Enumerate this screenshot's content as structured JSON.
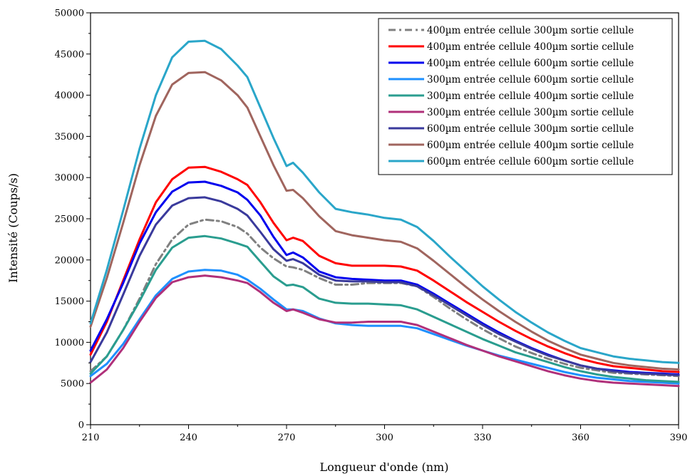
{
  "chart_data": {
    "type": "line",
    "xlabel": "Longueur d'onde (nm)",
    "ylabel": "Intensité (Coups/s)",
    "xlim": [
      210,
      390
    ],
    "ylim": [
      0,
      50000
    ],
    "x_ticks": [
      210,
      240,
      270,
      300,
      330,
      360,
      390
    ],
    "x_tick_labels": [
      "210",
      "240",
      "270",
      "300",
      "330",
      "360",
      "390"
    ],
    "y_ticks": [
      0,
      5000,
      10000,
      15000,
      20000,
      25000,
      30000,
      35000,
      40000,
      45000,
      50000
    ],
    "y_tick_labels": [
      "0",
      "5000",
      "10000",
      "15000",
      "20000",
      "25000",
      "30000",
      "35000",
      "40000",
      "45000",
      "50000"
    ],
    "grid": false,
    "legend_position": "top-right",
    "x": [
      210,
      215,
      220,
      225,
      230,
      235,
      240,
      245,
      250,
      255,
      258,
      262,
      266,
      270,
      272,
      275,
      280,
      285,
      290,
      295,
      300,
      305,
      310,
      315,
      320,
      325,
      330,
      335,
      340,
      345,
      350,
      355,
      360,
      365,
      370,
      375,
      380,
      385,
      390
    ],
    "series": [
      {
        "name": "400µm entrée cellule 300µm sortie cellule",
        "color": "#808080",
        "dash": "dashdot",
        "values": [
          6500,
          8300,
          11500,
          15300,
          19500,
          22500,
          24300,
          24900,
          24700,
          24000,
          23200,
          21500,
          20200,
          19200,
          19100,
          18800,
          17800,
          17000,
          17000,
          17200,
          17200,
          17200,
          16800,
          15500,
          14100,
          12800,
          11600,
          10500,
          9500,
          8700,
          8000,
          7400,
          6900,
          6600,
          6300,
          6200,
          6100,
          6000,
          5900
        ]
      },
      {
        "name": "400µm entrée cellule 400µm sortie cellule",
        "color": "#ff0000",
        "dash": "solid",
        "values": [
          8500,
          12500,
          17500,
          22500,
          27000,
          29800,
          31200,
          31300,
          30700,
          29800,
          29100,
          27000,
          24500,
          22400,
          22700,
          22300,
          20500,
          19600,
          19300,
          19300,
          19300,
          19200,
          18700,
          17500,
          16200,
          14900,
          13700,
          12500,
          11400,
          10400,
          9500,
          8700,
          8000,
          7500,
          7100,
          6900,
          6700,
          6500,
          6400
        ]
      },
      {
        "name": "400µm entrée cellule 600µm sortie cellule",
        "color": "#0000ee",
        "dash": "solid",
        "values": [
          9000,
          12800,
          17200,
          22000,
          25800,
          28300,
          29400,
          29500,
          29000,
          28200,
          27300,
          25400,
          22800,
          20600,
          20900,
          20300,
          18600,
          17900,
          17700,
          17600,
          17500,
          17500,
          17000,
          15900,
          14700,
          13500,
          12300,
          11200,
          10200,
          9300,
          8500,
          7800,
          7200,
          6800,
          6600,
          6400,
          6300,
          6200,
          6100
        ]
      },
      {
        "name": "300µm entrée cellule 600µm sortie cellule",
        "color": "#1e90ff",
        "dash": "solid",
        "values": [
          5900,
          7400,
          9800,
          12800,
          15700,
          17700,
          18600,
          18800,
          18700,
          18200,
          17600,
          16500,
          15200,
          14000,
          14000,
          13800,
          12900,
          12300,
          12100,
          12000,
          12000,
          12000,
          11700,
          11000,
          10300,
          9600,
          9000,
          8400,
          7900,
          7400,
          6900,
          6400,
          6000,
          5700,
          5500,
          5300,
          5200,
          5100,
          5000
        ]
      },
      {
        "name": "300µm entrée cellule 400µm sortie cellule",
        "color": "#2a9d8f",
        "dash": "solid",
        "values": [
          6200,
          8300,
          11500,
          15000,
          18800,
          21500,
          22700,
          22900,
          22600,
          22000,
          21600,
          19800,
          18000,
          16900,
          17000,
          16700,
          15300,
          14800,
          14700,
          14700,
          14600,
          14500,
          14000,
          13100,
          12200,
          11300,
          10400,
          9600,
          8800,
          8200,
          7600,
          7000,
          6500,
          6100,
          5800,
          5600,
          5400,
          5300,
          5200
        ]
      },
      {
        "name": "300µm entrée cellule 300µm sortie cellule",
        "color": "#b0307a",
        "dash": "solid",
        "values": [
          5100,
          6700,
          9300,
          12500,
          15400,
          17300,
          17900,
          18100,
          17900,
          17500,
          17200,
          16100,
          14800,
          13800,
          14000,
          13600,
          12800,
          12400,
          12400,
          12500,
          12500,
          12500,
          12100,
          11300,
          10500,
          9700,
          9000,
          8300,
          7700,
          7100,
          6500,
          6000,
          5600,
          5300,
          5100,
          5000,
          4900,
          4800,
          4700
        ]
      },
      {
        "name": "600µm entrée cellule 300µm sortie cellule",
        "color": "#3a3a9c",
        "dash": "solid",
        "values": [
          7600,
          11200,
          15800,
          20500,
          24300,
          26600,
          27500,
          27600,
          27100,
          26200,
          25400,
          23400,
          21300,
          19900,
          20100,
          19600,
          18200,
          17500,
          17400,
          17400,
          17300,
          17300,
          16800,
          15700,
          14500,
          13300,
          12100,
          11000,
          10100,
          9200,
          8400,
          7800,
          7200,
          6800,
          6500,
          6300,
          6200,
          6100,
          6000
        ]
      },
      {
        "name": "600µm entrée cellule 400µm sortie cellule",
        "color": "#a0655e",
        "dash": "solid",
        "values": [
          11900,
          17800,
          24500,
          31500,
          37500,
          41300,
          42700,
          42800,
          41800,
          40000,
          38500,
          35000,
          31500,
          28400,
          28500,
          27500,
          25300,
          23500,
          23000,
          22700,
          22400,
          22200,
          21400,
          19900,
          18300,
          16700,
          15200,
          13800,
          12500,
          11300,
          10200,
          9300,
          8500,
          8000,
          7500,
          7200,
          7000,
          6800,
          6700
        ]
      },
      {
        "name": "600µm entrée cellule 600µm sortie cellule",
        "color": "#2aa6c9",
        "dash": "solid",
        "values": [
          12300,
          18800,
          26000,
          33500,
          40000,
          44600,
          46500,
          46600,
          45600,
          43600,
          42200,
          38500,
          34800,
          31400,
          31800,
          30600,
          28200,
          26200,
          25800,
          25500,
          25100,
          24900,
          24000,
          22300,
          20400,
          18600,
          16800,
          15200,
          13700,
          12400,
          11200,
          10200,
          9300,
          8800,
          8300,
          8000,
          7800,
          7600,
          7500
        ]
      }
    ]
  }
}
